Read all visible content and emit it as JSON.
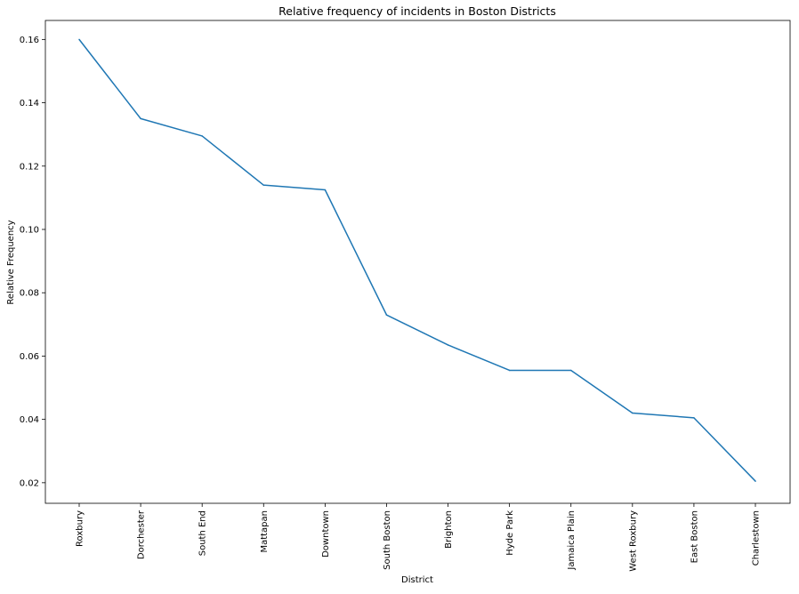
{
  "chart_data": {
    "type": "line",
    "title": "Relative frequency of incidents in Boston Districts",
    "xlabel": "District",
    "ylabel": "Relative Frequency",
    "categories": [
      "Roxbury",
      "Dorchester",
      "South End",
      "Mattapan",
      "Downtown",
      "South Boston",
      "Brighton",
      "Hyde Park",
      "Jamaica Plain",
      "West Roxbury",
      "East Boston",
      "Charlestown"
    ],
    "series": [
      {
        "values": [
          0.16,
          0.135,
          0.1295,
          0.114,
          0.1125,
          0.073,
          0.0635,
          0.0555,
          0.0555,
          0.042,
          0.0405,
          0.0205
        ]
      }
    ],
    "yticks": [
      0.02,
      0.04,
      0.06,
      0.08,
      0.1,
      0.12,
      0.14,
      0.16
    ],
    "ytick_labels": [
      "0.02",
      "0.04",
      "0.06",
      "0.08",
      "0.10",
      "0.12",
      "0.14",
      "0.16"
    ],
    "ylim": [
      0.0135,
      0.166
    ],
    "grid": false,
    "line_color": "#1f77b4"
  }
}
